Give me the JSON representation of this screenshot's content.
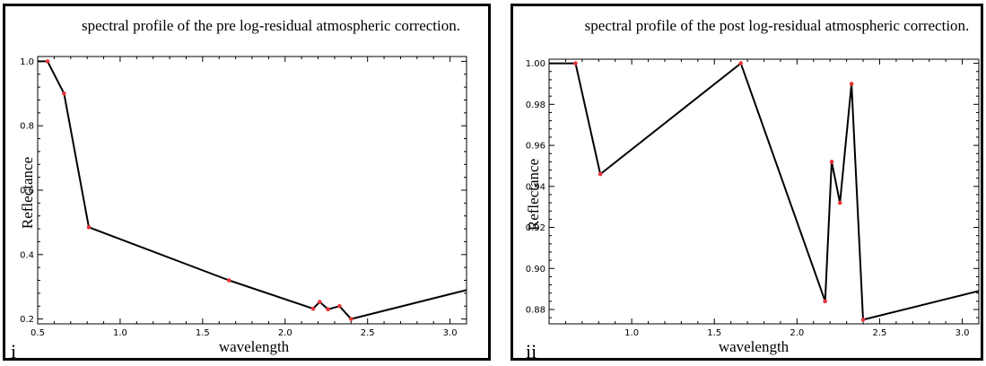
{
  "chart_data": [
    {
      "type": "line",
      "panel_label": "i",
      "title": "spectral profile of the pre log-residual atmospheric correction.",
      "xlabel": "wavelength",
      "ylabel": "Reflectance",
      "xlim": [
        0.5,
        3.1
      ],
      "ylim": [
        0.185,
        1.015
      ],
      "xticks": [
        0.5,
        1.0,
        1.5,
        2.0,
        2.5,
        3.0
      ],
      "xtick_labels": [
        "0.5",
        "1.0",
        "1.5",
        "2.0",
        "2.5",
        "3.0"
      ],
      "yticks": [
        0.2,
        0.4,
        0.6,
        0.8,
        1.0
      ],
      "ytick_labels": [
        "0.2",
        "0.4",
        "0.6",
        "0.8",
        "1.0"
      ],
      "grid": false,
      "line_color": "#000000",
      "marker_color": "#e8333a",
      "points": [
        {
          "x": 0.5,
          "y": 1.0,
          "marker": false
        },
        {
          "x": 0.56,
          "y": 1.0,
          "marker": true
        },
        {
          "x": 0.66,
          "y": 0.9,
          "marker": true
        },
        {
          "x": 0.81,
          "y": 0.485,
          "marker": true
        },
        {
          "x": 1.66,
          "y": 0.32,
          "marker": true
        },
        {
          "x": 2.17,
          "y": 0.232,
          "marker": true
        },
        {
          "x": 2.21,
          "y": 0.253,
          "marker": true
        },
        {
          "x": 2.26,
          "y": 0.23,
          "marker": true
        },
        {
          "x": 2.33,
          "y": 0.24,
          "marker": true
        },
        {
          "x": 2.4,
          "y": 0.2,
          "marker": true
        },
        {
          "x": 3.1,
          "y": 0.29,
          "marker": false
        }
      ]
    },
    {
      "type": "line",
      "panel_label": "ii",
      "title": "spectral profile of the post log-residual atmospheric correction.",
      "xlabel": "wavelength",
      "ylabel": "Reflectance",
      "xlim": [
        0.5,
        3.1
      ],
      "ylim": [
        0.873,
        1.002
      ],
      "xticks": [
        1.0,
        1.5,
        2.0,
        2.5,
        3.0
      ],
      "xtick_labels": [
        "1.0",
        "1.5",
        "2.0",
        "2.5",
        "3.0"
      ],
      "yticks": [
        0.88,
        0.9,
        0.92,
        0.94,
        0.96,
        0.98,
        1.0
      ],
      "ytick_labels": [
        "0.88",
        "0.90",
        "0.92",
        "0.94",
        "0.96",
        "0.98",
        "1.00"
      ],
      "grid": false,
      "line_color": "#000000",
      "marker_color": "#e8333a",
      "points": [
        {
          "x": 0.5,
          "y": 1.0,
          "marker": false
        },
        {
          "x": 0.66,
          "y": 1.0,
          "marker": true
        },
        {
          "x": 0.81,
          "y": 0.946,
          "marker": true
        },
        {
          "x": 1.66,
          "y": 1.0,
          "marker": true
        },
        {
          "x": 2.17,
          "y": 0.884,
          "marker": true
        },
        {
          "x": 2.21,
          "y": 0.952,
          "marker": true
        },
        {
          "x": 2.26,
          "y": 0.932,
          "marker": true
        },
        {
          "x": 2.33,
          "y": 0.99,
          "marker": true
        },
        {
          "x": 2.4,
          "y": 0.875,
          "marker": true
        },
        {
          "x": 3.1,
          "y": 0.889,
          "marker": false
        }
      ]
    }
  ]
}
